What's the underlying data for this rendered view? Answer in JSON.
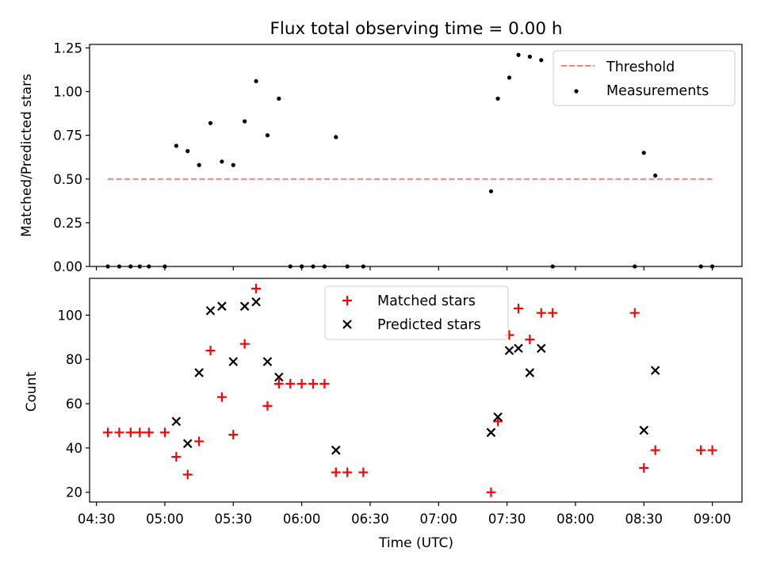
{
  "chart_data": [
    {
      "type": "scatter",
      "title": "Flux total observing time = 0.00 h",
      "xlabel": "",
      "ylabel": "Matched/Predicted stars",
      "ylim": [
        0,
        1.27
      ],
      "yticks": [
        "0.00",
        "0.25",
        "0.50",
        "0.75",
        "1.00",
        "1.25"
      ],
      "ytick_values": [
        0,
        0.25,
        0.5,
        0.75,
        1.0,
        1.25
      ],
      "threshold": {
        "name": "Threshold",
        "value": 0.5,
        "x_range": [
          "04:35",
          "09:00"
        ],
        "color": "#ff7f7f"
      },
      "series": [
        {
          "name": "Measurements",
          "color": "#000000",
          "marker": "dot",
          "points": [
            [
              "04:35",
              0
            ],
            [
              "04:40",
              0
            ],
            [
              "04:45",
              0
            ],
            [
              "04:49",
              0
            ],
            [
              "04:53",
              0
            ],
            [
              "05:00",
              0
            ],
            [
              "05:05",
              0.69
            ],
            [
              "05:10",
              0.66
            ],
            [
              "05:15",
              0.58
            ],
            [
              "05:20",
              0.82
            ],
            [
              "05:25",
              0.6
            ],
            [
              "05:30",
              0.58
            ],
            [
              "05:35",
              0.83
            ],
            [
              "05:40",
              1.06
            ],
            [
              "05:45",
              0.75
            ],
            [
              "05:50",
              0.96
            ],
            [
              "05:55",
              0
            ],
            [
              "06:00",
              0
            ],
            [
              "06:05",
              0
            ],
            [
              "06:10",
              0
            ],
            [
              "06:15",
              0.74
            ],
            [
              "06:20",
              0
            ],
            [
              "06:27",
              0
            ],
            [
              "07:23",
              0.43
            ],
            [
              "07:26",
              0.96
            ],
            [
              "07:31",
              1.08
            ],
            [
              "07:35",
              1.21
            ],
            [
              "07:40",
              1.2
            ],
            [
              "07:45",
              1.18
            ],
            [
              "07:50",
              0
            ],
            [
              "08:26",
              0
            ],
            [
              "08:30",
              0.65
            ],
            [
              "08:35",
              0.52
            ],
            [
              "08:55",
              0
            ],
            [
              "09:00",
              0
            ]
          ]
        }
      ],
      "legend": {
        "placement": "upper right",
        "items": [
          "Threshold",
          "Measurements"
        ]
      }
    },
    {
      "type": "scatter",
      "xlabel": "Time (UTC)",
      "ylabel": "Count",
      "xlim": [
        "04:27",
        "09:13"
      ],
      "ylim": [
        15.6,
        116.6
      ],
      "xticks": [
        "04:30",
        "05:00",
        "05:30",
        "06:00",
        "06:30",
        "07:00",
        "07:30",
        "08:00",
        "08:30",
        "09:00"
      ],
      "yticks": [
        "20",
        "40",
        "60",
        "80",
        "100"
      ],
      "ytick_values": [
        20,
        40,
        60,
        80,
        100
      ],
      "series": [
        {
          "name": "Matched stars",
          "color": "#ff0000",
          "marker": "plus",
          "points": [
            [
              "04:35",
              47
            ],
            [
              "04:40",
              47
            ],
            [
              "04:45",
              47
            ],
            [
              "04:49",
              47
            ],
            [
              "04:53",
              47
            ],
            [
              "05:00",
              47
            ],
            [
              "05:05",
              36
            ],
            [
              "05:10",
              28
            ],
            [
              "05:15",
              43
            ],
            [
              "05:20",
              84
            ],
            [
              "05:25",
              63
            ],
            [
              "05:30",
              46
            ],
            [
              "05:35",
              87
            ],
            [
              "05:40",
              112
            ],
            [
              "05:45",
              59
            ],
            [
              "05:50",
              69
            ],
            [
              "05:55",
              69
            ],
            [
              "06:00",
              69
            ],
            [
              "06:05",
              69
            ],
            [
              "06:10",
              69
            ],
            [
              "06:15",
              29
            ],
            [
              "06:20",
              29
            ],
            [
              "06:27",
              29
            ],
            [
              "07:23",
              20
            ],
            [
              "07:26",
              52
            ],
            [
              "07:31",
              91
            ],
            [
              "07:35",
              103
            ],
            [
              "07:40",
              89
            ],
            [
              "07:45",
              101
            ],
            [
              "07:50",
              101
            ],
            [
              "08:26",
              101
            ],
            [
              "08:30",
              31
            ],
            [
              "08:35",
              39
            ],
            [
              "08:55",
              39
            ],
            [
              "09:00",
              39
            ]
          ]
        },
        {
          "name": "Predicted stars",
          "color": "#000000",
          "marker": "x",
          "points": [
            [
              "05:05",
              52
            ],
            [
              "05:10",
              42
            ],
            [
              "05:15",
              74
            ],
            [
              "05:20",
              102
            ],
            [
              "05:25",
              104
            ],
            [
              "05:30",
              79
            ],
            [
              "05:35",
              104
            ],
            [
              "05:40",
              106
            ],
            [
              "05:45",
              79
            ],
            [
              "05:50",
              72
            ],
            [
              "06:15",
              39
            ],
            [
              "07:23",
              47
            ],
            [
              "07:26",
              54
            ],
            [
              "07:31",
              84
            ],
            [
              "07:35",
              85
            ],
            [
              "07:40",
              74
            ],
            [
              "07:45",
              85
            ],
            [
              "08:30",
              48
            ],
            [
              "08:35",
              75
            ]
          ]
        }
      ],
      "legend": {
        "placement": "upper center",
        "items": [
          "Matched stars",
          "Predicted stars"
        ]
      }
    }
  ]
}
